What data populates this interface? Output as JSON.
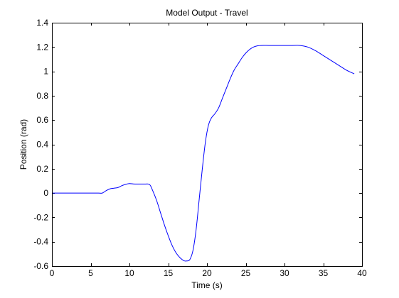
{
  "chart_data": {
    "type": "line",
    "title": "Model Output - Travel",
    "xlabel": "Time (s)",
    "ylabel": "Position (rad)",
    "xlim": [
      0,
      40
    ],
    "ylim": [
      -0.6,
      1.4
    ],
    "xticks": [
      0,
      5,
      10,
      15,
      20,
      25,
      30,
      35,
      40
    ],
    "yticks": [
      -0.6,
      -0.4,
      -0.2,
      0,
      0.2,
      0.4,
      0.6,
      0.8,
      1,
      1.2,
      1.4
    ],
    "xtick_labels": [
      "0",
      "5",
      "10",
      "15",
      "20",
      "25",
      "30",
      "35",
      "40"
    ],
    "ytick_labels": [
      "-0.6",
      "-0.4",
      "-0.2",
      "0",
      "0.2",
      "0.4",
      "0.6",
      "0.8",
      "1",
      "1.2",
      "1.4"
    ],
    "grid": false,
    "line_color": "#0000ff",
    "series": [
      {
        "x": [
          0,
          1,
          2,
          3,
          4,
          5,
          6,
          6.5,
          7,
          7.5,
          8,
          8.5,
          9,
          9.5,
          10,
          10.5,
          11,
          12,
          12.6,
          13,
          13.5,
          14,
          14.5,
          15,
          15.5,
          16,
          16.5,
          17,
          17.4,
          17.8,
          18.2,
          18.6,
          19,
          19.4,
          19.8,
          20.2,
          20.6,
          21,
          21.5,
          22,
          22.5,
          23,
          23.5,
          24,
          24.5,
          25,
          25.5,
          26,
          26.5,
          27,
          28,
          29,
          30,
          31,
          32,
          33,
          34,
          35,
          36,
          37,
          38,
          39
        ],
        "y": [
          0.0,
          0.0,
          0.0,
          0.0,
          0.0,
          0.0,
          0.0,
          0.0,
          0.02,
          0.035,
          0.04,
          0.045,
          0.06,
          0.072,
          0.078,
          0.075,
          0.074,
          0.074,
          0.07,
          0.02,
          -0.06,
          -0.16,
          -0.26,
          -0.35,
          -0.43,
          -0.49,
          -0.53,
          -0.555,
          -0.558,
          -0.545,
          -0.47,
          -0.3,
          -0.05,
          0.2,
          0.42,
          0.56,
          0.62,
          0.65,
          0.7,
          0.78,
          0.86,
          0.94,
          1.01,
          1.06,
          1.11,
          1.15,
          1.18,
          1.2,
          1.21,
          1.213,
          1.213,
          1.213,
          1.213,
          1.213,
          1.213,
          1.2,
          1.17,
          1.13,
          1.09,
          1.05,
          1.01,
          0.98
        ]
      }
    ]
  }
}
